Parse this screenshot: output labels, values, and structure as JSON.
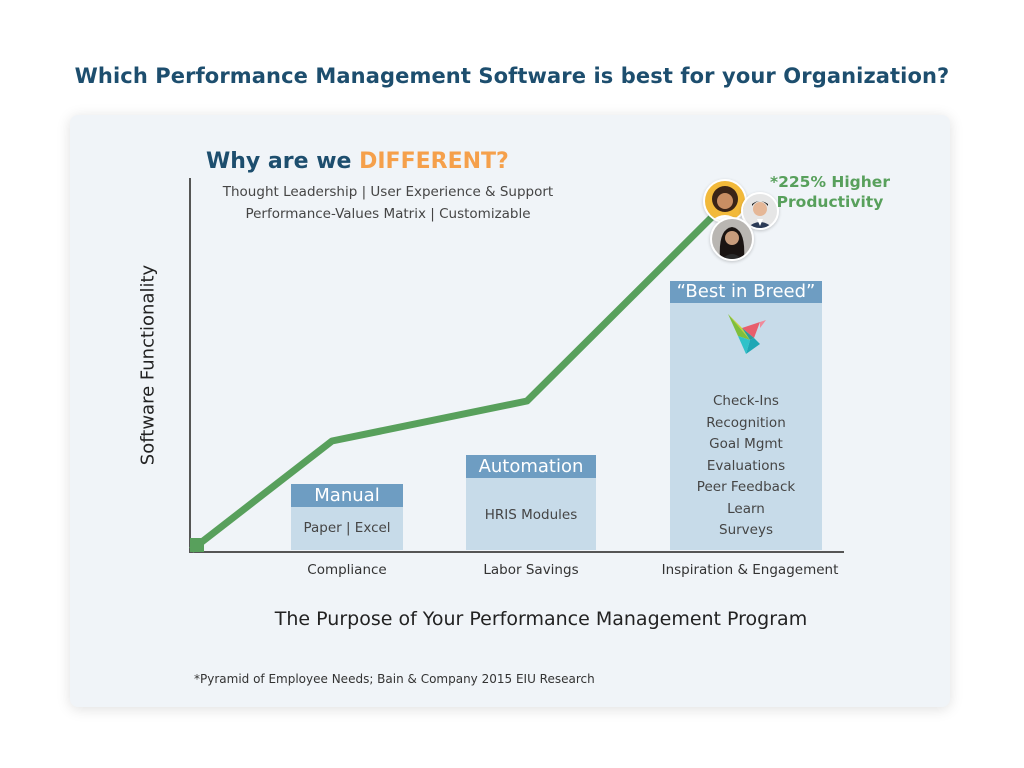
{
  "title": "Which Performance Management Software is best for your Organization?",
  "heading": {
    "prefix": "Why are we ",
    "highlight": "DIFFERENT?"
  },
  "features": [
    "Thought Leadership | User Experience & Support",
    "Performance-Values Matrix | Customizable"
  ],
  "y_axis_label": "Software Functionality",
  "x_axis_label": "The Purpose of Your Performance Management Program",
  "callout": {
    "line1": "*225% Higher",
    "line2": "Productivity"
  },
  "stages": [
    {
      "category": "Compliance",
      "header": "Manual",
      "items": [
        "Paper | Excel"
      ],
      "level": 1
    },
    {
      "category": "Labor Savings",
      "header": "Automation",
      "items": [
        "HRIS Modules"
      ],
      "level": 2
    },
    {
      "category": "Inspiration & Engagement",
      "header": "“Best in Breed”",
      "items": [
        "Check-Ins",
        "Recognition",
        "Goal Mgmt",
        "Evaluations",
        "Peer Feedback",
        "Learn",
        "Surveys"
      ],
      "level": 3
    }
  ],
  "footnote": "*Pyramid of Employee Needs; Bain & Company 2015 EIU Research",
  "colors": {
    "title": "#1d4e6e",
    "highlight": "#f5a04b",
    "growth_line": "#58a05c",
    "box_header": "#6e9dc2",
    "box_body": "#c7dbe9",
    "card_bg": "#f0f4f8"
  },
  "icons": [
    "origami-bird-logo",
    "avatar-woman-curly-hair",
    "avatar-man",
    "avatar-woman-dark-hair"
  ]
}
